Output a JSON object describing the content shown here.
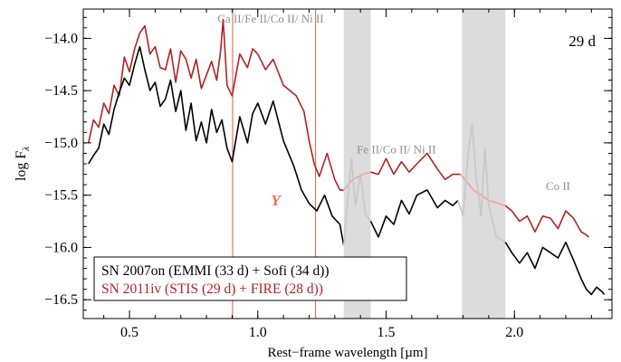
{
  "chart_data": {
    "type": "line",
    "xlabel": "Rest−frame wavelength [µm]",
    "ylabel_main": "log F",
    "ylabel_sub": "λ",
    "xlim": [
      0.32,
      2.38
    ],
    "ylim": [
      -16.68,
      -13.72
    ],
    "xticks": [
      {
        "value": 0.5,
        "label": "0.5"
      },
      {
        "value": 1.0,
        "label": "1.0"
      },
      {
        "value": 1.5,
        "label": "1.5"
      },
      {
        "value": 2.0,
        "label": "2.0"
      }
    ],
    "yticks": [
      {
        "value": -14.0,
        "label": "−14.0"
      },
      {
        "value": -14.5,
        "label": "−14.5"
      },
      {
        "value": -15.0,
        "label": "−15.0"
      },
      {
        "value": -15.5,
        "label": "−15.5"
      },
      {
        "value": -16.0,
        "label": "−16.0"
      },
      {
        "value": -16.5,
        "label": "−16.5"
      }
    ],
    "grid": false,
    "epoch_label": "29 d",
    "telluric_bands": [
      [
        1.335,
        1.44
      ],
      [
        1.795,
        1.965
      ]
    ],
    "vlines": [
      0.902,
      1.225
    ],
    "annotations": [
      {
        "text": "Ca II/Fe II/Co II/ Ni II",
        "x": 1.05,
        "y": -13.85
      },
      {
        "text": "Fe II/Co II/ Ni II",
        "x": 1.54,
        "y": -15.1
      },
      {
        "text": "Co II",
        "x": 2.17,
        "y": -15.45
      },
      {
        "text": "Y",
        "x": 1.07,
        "y": -15.6
      }
    ],
    "legend": {
      "position": "bottom-left",
      "entries": [
        {
          "text": "SN 2007on (EMMI (33 d) + Sofi (34 d))",
          "color": "#000000"
        },
        {
          "text": "SN 2011iv (STIS (29 d) + FIRE (28 d))",
          "color": "#b22222"
        }
      ]
    },
    "colors": {
      "sn2007on": "#000000",
      "sn2011iv": "#b22222",
      "vline": "#e8735a",
      "y_label": "#e8735a",
      "telluric": "#dcdcdc",
      "faint_red": "#f3a3a3",
      "faint_gray": "#c8c8c8",
      "annotation": "#909090"
    },
    "series": [
      {
        "key": "sn2011iv",
        "segments": [
          {
            "style": "solid",
            "points": [
              [
                0.34,
                -15.0
              ],
              [
                0.36,
                -14.78
              ],
              [
                0.38,
                -14.85
              ],
              [
                0.4,
                -14.62
              ],
              [
                0.42,
                -14.72
              ],
              [
                0.44,
                -14.45
              ],
              [
                0.46,
                -14.55
              ],
              [
                0.48,
                -14.18
              ],
              [
                0.5,
                -14.32
              ],
              [
                0.52,
                -14.1
              ],
              [
                0.54,
                -13.95
              ],
              [
                0.56,
                -13.88
              ],
              [
                0.58,
                -14.15
              ],
              [
                0.6,
                -14.08
              ],
              [
                0.62,
                -14.28
              ],
              [
                0.64,
                -14.3
              ],
              [
                0.66,
                -14.1
              ],
              [
                0.68,
                -14.42
              ],
              [
                0.7,
                -14.12
              ],
              [
                0.72,
                -14.2
              ],
              [
                0.74,
                -14.38
              ],
              [
                0.76,
                -14.2
              ],
              [
                0.78,
                -14.48
              ],
              [
                0.8,
                -14.35
              ],
              [
                0.82,
                -14.22
              ],
              [
                0.84,
                -14.4
              ],
              [
                0.855,
                -14.12
              ],
              [
                0.865,
                -13.82
              ],
              [
                0.88,
                -14.45
              ],
              [
                0.9,
                -14.55
              ],
              [
                0.93,
                -14.15
              ],
              [
                0.96,
                -14.28
              ],
              [
                0.98,
                -14.1
              ],
              [
                1.0,
                -14.15
              ],
              [
                1.03,
                -14.3
              ],
              [
                1.06,
                -14.2
              ],
              [
                1.1,
                -14.45
              ],
              [
                1.15,
                -14.55
              ],
              [
                1.18,
                -14.7
              ],
              [
                1.2,
                -14.98
              ],
              [
                1.22,
                -15.2
              ],
              [
                1.24,
                -15.32
              ],
              [
                1.27,
                -15.1
              ],
              [
                1.3,
                -15.35
              ],
              [
                1.32,
                -15.45
              ],
              [
                1.335,
                -15.45
              ]
            ]
          },
          {
            "style": "faint",
            "points": [
              [
                1.335,
                -15.45
              ],
              [
                1.37,
                -15.35
              ],
              [
                1.41,
                -15.3
              ],
              [
                1.44,
                -15.28
              ]
            ]
          },
          {
            "style": "solid",
            "points": [
              [
                1.44,
                -15.28
              ],
              [
                1.47,
                -15.3
              ],
              [
                1.5,
                -15.15
              ],
              [
                1.53,
                -15.3
              ],
              [
                1.56,
                -15.18
              ],
              [
                1.59,
                -15.28
              ],
              [
                1.62,
                -15.2
              ],
              [
                1.66,
                -15.1
              ],
              [
                1.7,
                -15.25
              ],
              [
                1.73,
                -15.35
              ],
              [
                1.76,
                -15.3
              ],
              [
                1.79,
                -15.3
              ]
            ]
          },
          {
            "style": "faint",
            "points": [
              [
                1.79,
                -15.3
              ],
              [
                1.84,
                -15.45
              ],
              [
                1.9,
                -15.55
              ],
              [
                1.965,
                -15.6
              ]
            ]
          },
          {
            "style": "solid",
            "points": [
              [
                1.965,
                -15.6
              ],
              [
                1.99,
                -15.65
              ],
              [
                2.02,
                -15.75
              ],
              [
                2.05,
                -15.7
              ],
              [
                2.08,
                -15.85
              ],
              [
                2.11,
                -15.7
              ],
              [
                2.14,
                -15.72
              ],
              [
                2.17,
                -15.82
              ],
              [
                2.2,
                -15.65
              ],
              [
                2.23,
                -15.72
              ],
              [
                2.26,
                -15.85
              ],
              [
                2.28,
                -15.88
              ],
              [
                2.29,
                -15.9
              ]
            ]
          }
        ]
      },
      {
        "key": "sn2007on",
        "segments": [
          {
            "style": "solid",
            "points": [
              [
                0.34,
                -15.2
              ],
              [
                0.36,
                -15.12
              ],
              [
                0.38,
                -15.05
              ],
              [
                0.4,
                -14.82
              ],
              [
                0.42,
                -14.92
              ],
              [
                0.44,
                -14.68
              ],
              [
                0.46,
                -14.52
              ],
              [
                0.48,
                -14.38
              ],
              [
                0.5,
                -14.45
              ],
              [
                0.52,
                -14.25
              ],
              [
                0.54,
                -14.08
              ],
              [
                0.56,
                -14.3
              ],
              [
                0.58,
                -14.5
              ],
              [
                0.6,
                -14.42
              ],
              [
                0.62,
                -14.65
              ],
              [
                0.64,
                -14.58
              ],
              [
                0.66,
                -14.4
              ],
              [
                0.68,
                -14.7
              ],
              [
                0.7,
                -14.5
              ],
              [
                0.72,
                -14.88
              ],
              [
                0.74,
                -14.62
              ],
              [
                0.76,
                -14.98
              ],
              [
                0.78,
                -14.8
              ],
              [
                0.8,
                -15.0
              ],
              [
                0.82,
                -14.68
              ],
              [
                0.84,
                -14.9
              ],
              [
                0.86,
                -14.78
              ],
              [
                0.88,
                -15.05
              ],
              [
                0.9,
                -15.18
              ],
              [
                0.93,
                -14.75
              ],
              [
                0.96,
                -15.0
              ],
              [
                0.98,
                -14.72
              ],
              [
                1.0,
                -14.62
              ],
              [
                1.03,
                -14.82
              ],
              [
                1.06,
                -14.6
              ],
              [
                1.1,
                -14.98
              ],
              [
                1.14,
                -15.22
              ],
              [
                1.17,
                -15.45
              ],
              [
                1.2,
                -15.58
              ],
              [
                1.23,
                -15.65
              ],
              [
                1.26,
                -15.5
              ],
              [
                1.29,
                -15.7
              ],
              [
                1.32,
                -15.78
              ],
              [
                1.335,
                -15.98
              ]
            ]
          },
          {
            "style": "faint",
            "points": [
              [
                1.335,
                -15.98
              ],
              [
                1.35,
                -15.55
              ],
              [
                1.365,
                -15.15
              ],
              [
                1.38,
                -15.6
              ],
              [
                1.4,
                -15.3
              ],
              [
                1.42,
                -15.68
              ],
              [
                1.44,
                -15.75
              ]
            ]
          },
          {
            "style": "solid",
            "points": [
              [
                1.44,
                -15.75
              ],
              [
                1.47,
                -15.9
              ],
              [
                1.5,
                -15.7
              ],
              [
                1.53,
                -15.78
              ],
              [
                1.56,
                -15.55
              ],
              [
                1.59,
                -15.68
              ],
              [
                1.62,
                -15.5
              ],
              [
                1.66,
                -15.45
              ],
              [
                1.7,
                -15.62
              ],
              [
                1.73,
                -15.55
              ],
              [
                1.76,
                -15.6
              ],
              [
                1.78,
                -15.55
              ]
            ]
          },
          {
            "style": "faint",
            "points": [
              [
                1.78,
                -15.55
              ],
              [
                1.8,
                -15.7
              ],
              [
                1.82,
                -15.1
              ],
              [
                1.835,
                -14.82
              ],
              [
                1.85,
                -15.3
              ],
              [
                1.87,
                -15.7
              ],
              [
                1.885,
                -15.05
              ],
              [
                1.9,
                -15.6
              ],
              [
                1.93,
                -15.9
              ],
              [
                1.965,
                -15.95
              ]
            ]
          },
          {
            "style": "solid",
            "points": [
              [
                1.965,
                -15.95
              ],
              [
                1.99,
                -16.05
              ],
              [
                2.02,
                -16.15
              ],
              [
                2.05,
                -16.05
              ],
              [
                2.08,
                -16.2
              ],
              [
                2.11,
                -16.0
              ],
              [
                2.14,
                -16.05
              ],
              [
                2.17,
                -16.1
              ],
              [
                2.2,
                -15.95
              ],
              [
                2.23,
                -16.12
              ],
              [
                2.26,
                -16.3
              ],
              [
                2.28,
                -16.4
              ],
              [
                2.3,
                -16.45
              ],
              [
                2.32,
                -16.38
              ],
              [
                2.34,
                -16.42
              ],
              [
                2.35,
                -16.45
              ]
            ]
          }
        ]
      }
    ]
  }
}
